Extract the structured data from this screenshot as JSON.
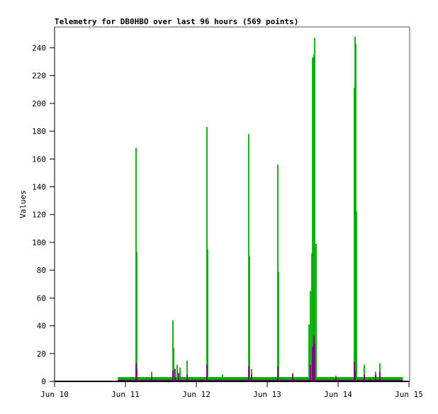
{
  "chart_data": {
    "type": "bar",
    "title": "Telemetry for DB0HBO over last 96 hours (569 points)",
    "xlabel": "",
    "ylabel": "Values",
    "xlim": [
      "06-10 00:00",
      "06-15 00:00"
    ],
    "ylim": [
      0,
      255
    ],
    "x_ticks": [
      {
        "t": "06-10 00:00",
        "label": "Jun 10"
      },
      {
        "t": "06-11 00:00",
        "label": "Jun 11"
      },
      {
        "t": "06-12 00:00",
        "label": "Jun 12"
      },
      {
        "t": "06-13 00:00",
        "label": "Jun 13"
      },
      {
        "t": "06-14 00:00",
        "label": "Jun 14"
      },
      {
        "t": "06-15 00:00",
        "label": "Jun 15"
      }
    ],
    "y_ticks": [
      0,
      20,
      40,
      60,
      80,
      100,
      120,
      140,
      160,
      180,
      200,
      220,
      240
    ],
    "grid": false,
    "data_range": [
      "06-10 21:36",
      "06-14 21:50"
    ],
    "series": [
      {
        "color": "#00aa00",
        "baseline": 3,
        "spikes": [
          [
            "06-11 03:36",
            168
          ],
          [
            "06-11 03:50",
            93
          ],
          [
            "06-11 08:53",
            7
          ],
          [
            "06-11 16:05",
            44
          ],
          [
            "06-11 16:19",
            24
          ],
          [
            "06-11 17:31",
            12
          ],
          [
            "06-11 18:29",
            10
          ],
          [
            "06-11 20:53",
            15
          ],
          [
            "06-12 03:36",
            183
          ],
          [
            "06-12 03:50",
            95
          ],
          [
            "06-12 08:53",
            5
          ],
          [
            "06-12 17:46",
            178
          ],
          [
            "06-12 18:00",
            90
          ],
          [
            "06-12 18:43",
            9
          ],
          [
            "06-13 03:36",
            156
          ],
          [
            "06-13 03:50",
            79
          ],
          [
            "06-13 08:38",
            6
          ],
          [
            "06-13 14:10",
            41
          ],
          [
            "06-13 14:38",
            65
          ],
          [
            "06-13 15:07",
            92
          ],
          [
            "06-13 15:22",
            233
          ],
          [
            "06-13 15:50",
            235
          ],
          [
            "06-13 16:05",
            247
          ],
          [
            "06-13 16:34",
            99
          ],
          [
            "06-13 23:17",
            4
          ],
          [
            "06-14 05:31",
            211
          ],
          [
            "06-14 05:46",
            248
          ],
          [
            "06-14 06:00",
            243
          ],
          [
            "06-14 06:14",
            122
          ],
          [
            "06-14 08:53",
            12
          ],
          [
            "06-14 12:43",
            7
          ],
          [
            "06-14 14:10",
            13
          ]
        ]
      },
      {
        "color": "#800080",
        "baseline": 1,
        "spikes": [
          [
            "06-11 03:36",
            13
          ],
          [
            "06-11 03:50",
            9
          ],
          [
            "06-11 08:53",
            3
          ],
          [
            "06-11 16:05",
            8
          ],
          [
            "06-11 16:48",
            9
          ],
          [
            "06-11 17:59",
            6
          ],
          [
            "06-11 20:53",
            5
          ],
          [
            "06-12 03:36",
            12
          ],
          [
            "06-12 17:46",
            11
          ],
          [
            "06-12 18:43",
            5
          ],
          [
            "06-13 03:36",
            11
          ],
          [
            "06-13 08:38",
            5
          ],
          [
            "06-13 14:38",
            12
          ],
          [
            "06-13 15:22",
            25
          ],
          [
            "06-13 15:50",
            33
          ],
          [
            "06-13 16:05",
            27
          ],
          [
            "06-13 23:17",
            3
          ],
          [
            "06-14 05:31",
            14
          ],
          [
            "06-14 05:46",
            8
          ],
          [
            "06-14 08:53",
            5
          ],
          [
            "06-14 12:43",
            5
          ],
          [
            "06-14 14:10",
            7
          ]
        ]
      }
    ]
  }
}
